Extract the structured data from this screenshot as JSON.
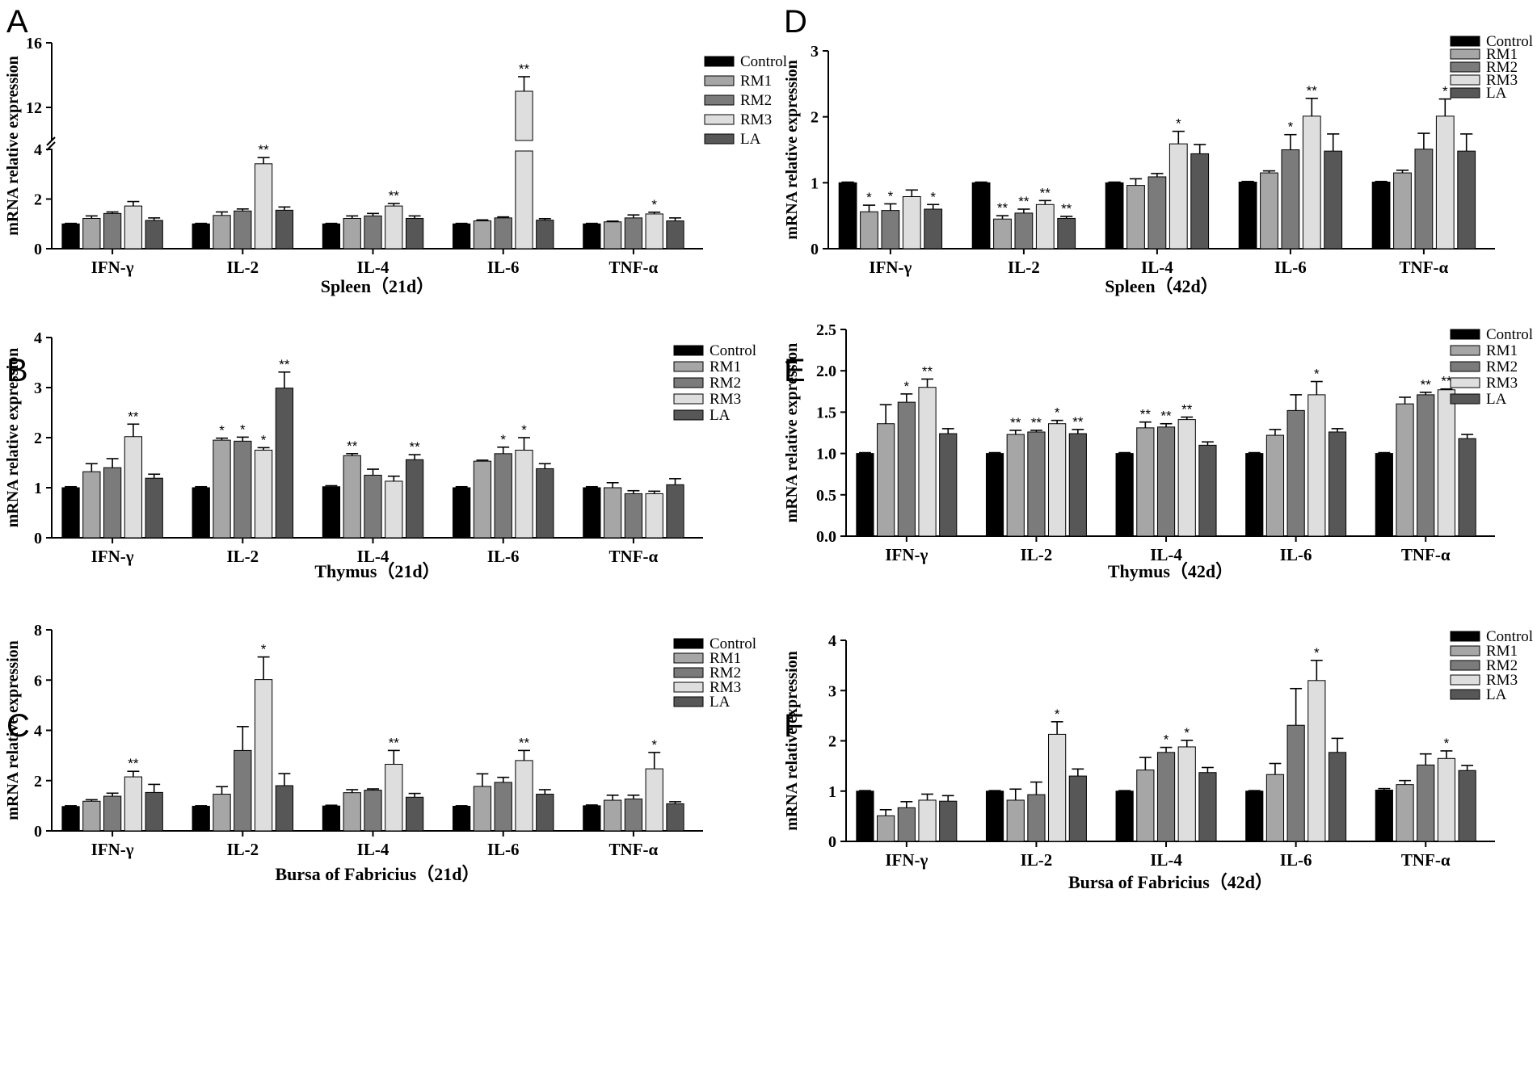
{
  "figure": {
    "series_names": [
      "Control",
      "RM1",
      "RM2",
      "RM3",
      "LA"
    ],
    "colors": {
      "Control": "#000000",
      "RM1": "#a6a6a6",
      "RM2": "#7b7b7b",
      "RM3": "#dedede",
      "LA": "#575757"
    },
    "ylabel": "mRNA relative expression"
  },
  "chart_data": [
    {
      "panel": "A",
      "type": "bar",
      "title": "",
      "xlabel": "Spleen（21d）",
      "ylabel": "mRNA relative expression",
      "categories": [
        "IFN-γ",
        "IL-2",
        "IL-4",
        "IL-6",
        "TNF-α"
      ],
      "y_broken": true,
      "ylim": [
        0,
        16
      ],
      "yticks": [
        "0",
        "2",
        "4",
        "12",
        "16"
      ],
      "series": [
        {
          "name": "Control",
          "values": [
            1.0,
            1.0,
            1.0,
            1.0,
            1.0
          ],
          "errors": [
            0.02,
            0.02,
            0.02,
            0.02,
            0.02
          ],
          "sig": [
            "",
            "",
            "",
            "",
            ""
          ]
        },
        {
          "name": "RM1",
          "values": [
            1.22,
            1.34,
            1.22,
            1.12,
            1.08
          ],
          "errors": [
            0.1,
            0.14,
            0.1,
            0.04,
            0.03
          ],
          "sig": [
            "",
            "",
            "",
            "",
            ""
          ]
        },
        {
          "name": "RM2",
          "values": [
            1.42,
            1.52,
            1.32,
            1.24,
            1.24
          ],
          "errors": [
            0.06,
            0.08,
            0.1,
            0.04,
            0.12
          ],
          "sig": [
            "",
            "",
            "",
            "",
            ""
          ]
        },
        {
          "name": "RM3",
          "values": [
            1.72,
            3.42,
            1.72,
            13.0,
            1.4
          ],
          "errors": [
            0.18,
            0.25,
            0.1,
            0.9,
            0.07
          ],
          "sig": [
            "",
            "**",
            "**",
            "**",
            "*"
          ]
        },
        {
          "name": "LA",
          "values": [
            1.14,
            1.55,
            1.22,
            1.15,
            1.12
          ],
          "errors": [
            0.1,
            0.13,
            0.1,
            0.06,
            0.12
          ],
          "sig": [
            "",
            "",
            "",
            "",
            ""
          ]
        }
      ]
    },
    {
      "panel": "B",
      "type": "bar",
      "title": "",
      "xlabel": "Thymus（21d）",
      "ylabel": "mRNA relative expression",
      "categories": [
        "IFN-γ",
        "IL-2",
        "IL-4",
        "IL-6",
        "TNF-α"
      ],
      "ylim": [
        0,
        4
      ],
      "yticks": [
        "0",
        "1",
        "2",
        "3",
        "4"
      ],
      "series": [
        {
          "name": "Control",
          "values": [
            1.0,
            1.0,
            1.02,
            1.0,
            1.0
          ],
          "errors": [
            0.02,
            0.02,
            0.02,
            0.02,
            0.02
          ],
          "sig": [
            "",
            "",
            "",
            "",
            ""
          ]
        },
        {
          "name": "RM1",
          "values": [
            1.32,
            1.95,
            1.64,
            1.53,
            1.0
          ],
          "errors": [
            0.16,
            0.04,
            0.04,
            0.02,
            0.1
          ],
          "sig": [
            "",
            "*",
            "**",
            "",
            ""
          ]
        },
        {
          "name": "RM2",
          "values": [
            1.4,
            1.93,
            1.25,
            1.68,
            0.88
          ],
          "errors": [
            0.18,
            0.08,
            0.12,
            0.13,
            0.06
          ],
          "sig": [
            "",
            "*",
            "",
            "*",
            ""
          ]
        },
        {
          "name": "RM3",
          "values": [
            2.02,
            1.75,
            1.13,
            1.75,
            0.88
          ],
          "errors": [
            0.25,
            0.05,
            0.1,
            0.25,
            0.05
          ],
          "sig": [
            "**",
            "*",
            "",
            "*",
            ""
          ]
        },
        {
          "name": "LA",
          "values": [
            1.19,
            2.99,
            1.56,
            1.38,
            1.06
          ],
          "errors": [
            0.08,
            0.32,
            0.1,
            0.1,
            0.12
          ],
          "sig": [
            "",
            "**",
            "**",
            "",
            ""
          ]
        }
      ]
    },
    {
      "panel": "C",
      "type": "bar",
      "title": "",
      "xlabel": "Bursa of Fabricius（21d）",
      "ylabel": "mRNA relative expression",
      "categories": [
        "IFN-γ",
        "IL-2",
        "IL-4",
        "IL-6",
        "TNF-α"
      ],
      "ylim": [
        0,
        8
      ],
      "yticks": [
        "0",
        "2",
        "4",
        "6",
        "8"
      ],
      "series": [
        {
          "name": "Control",
          "values": [
            0.97,
            0.98,
            0.99,
            0.98,
            1.0
          ],
          "errors": [
            0.03,
            0.02,
            0.03,
            0.02,
            0.03
          ],
          "sig": [
            "",
            "",
            "",
            "",
            ""
          ]
        },
        {
          "name": "RM1",
          "values": [
            1.18,
            1.46,
            1.52,
            1.77,
            1.22
          ],
          "errors": [
            0.06,
            0.3,
            0.12,
            0.5,
            0.2
          ],
          "sig": [
            "",
            "",
            "",
            "",
            ""
          ]
        },
        {
          "name": "RM2",
          "values": [
            1.38,
            3.2,
            1.62,
            1.93,
            1.27
          ],
          "errors": [
            0.12,
            0.95,
            0.05,
            0.2,
            0.15
          ],
          "sig": [
            "",
            "",
            "",
            "",
            ""
          ]
        },
        {
          "name": "RM3",
          "values": [
            2.15,
            6.02,
            2.65,
            2.8,
            2.47
          ],
          "errors": [
            0.22,
            0.9,
            0.55,
            0.4,
            0.65
          ],
          "sig": [
            "**",
            "*",
            "**",
            "**",
            "*"
          ]
        },
        {
          "name": "LA",
          "values": [
            1.53,
            1.8,
            1.34,
            1.46,
            1.08
          ],
          "errors": [
            0.32,
            0.48,
            0.15,
            0.18,
            0.08
          ],
          "sig": [
            "",
            "",
            "",
            "",
            ""
          ]
        }
      ]
    },
    {
      "panel": "D",
      "type": "bar",
      "title": "",
      "xlabel": "Spleen（42d）",
      "ylabel": "mRNA relative expression",
      "categories": [
        "IFN-γ",
        "IL-2",
        "IL-4",
        "IL-6",
        "TNF-α"
      ],
      "ylim": [
        0,
        3
      ],
      "yticks": [
        "0",
        "1",
        "2",
        "3"
      ],
      "series": [
        {
          "name": "Control",
          "values": [
            1.0,
            1.0,
            1.0,
            1.01,
            1.01
          ],
          "errors": [
            0.01,
            0.01,
            0.01,
            0.01,
            0.01
          ],
          "sig": [
            "",
            "",
            "",
            "",
            ""
          ]
        },
        {
          "name": "RM1",
          "values": [
            0.56,
            0.45,
            0.96,
            1.15,
            1.15
          ],
          "errors": [
            0.1,
            0.05,
            0.1,
            0.03,
            0.04
          ],
          "sig": [
            "*",
            "**",
            "",
            "",
            ""
          ]
        },
        {
          "name": "RM2",
          "values": [
            0.58,
            0.54,
            1.09,
            1.5,
            1.51
          ],
          "errors": [
            0.1,
            0.06,
            0.05,
            0.23,
            0.24
          ],
          "sig": [
            "*",
            "**",
            "",
            "*",
            ""
          ]
        },
        {
          "name": "RM3",
          "values": [
            0.79,
            0.67,
            1.59,
            2.01,
            2.01
          ],
          "errors": [
            0.1,
            0.06,
            0.19,
            0.27,
            0.26
          ],
          "sig": [
            "",
            "**",
            "*",
            "**",
            "*"
          ]
        },
        {
          "name": "LA",
          "values": [
            0.6,
            0.46,
            1.44,
            1.48,
            1.48
          ],
          "errors": [
            0.07,
            0.03,
            0.14,
            0.26,
            0.26
          ],
          "sig": [
            "*",
            "**",
            "",
            "",
            ""
          ]
        }
      ]
    },
    {
      "panel": "E",
      "type": "bar",
      "title": "",
      "xlabel": "Thymus（42d）",
      "ylabel": "mRNA relative expression",
      "categories": [
        "IFN-γ",
        "IL-2",
        "IL-4",
        "IL-6",
        "TNF-α"
      ],
      "ylim": [
        0,
        2.5
      ],
      "yticks": [
        "0.0",
        "0.5",
        "1.0",
        "1.5",
        "2.0",
        "2.5"
      ],
      "series": [
        {
          "name": "Control",
          "values": [
            1.0,
            1.0,
            1.0,
            1.0,
            1.0
          ],
          "errors": [
            0.01,
            0.01,
            0.01,
            0.01,
            0.01
          ],
          "sig": [
            "",
            "",
            "",
            "",
            ""
          ]
        },
        {
          "name": "RM1",
          "values": [
            1.36,
            1.23,
            1.31,
            1.22,
            1.6
          ],
          "errors": [
            0.23,
            0.05,
            0.07,
            0.07,
            0.08
          ],
          "sig": [
            "",
            "**",
            "**",
            "",
            ""
          ]
        },
        {
          "name": "RM2",
          "values": [
            1.62,
            1.26,
            1.32,
            1.52,
            1.71
          ],
          "errors": [
            0.1,
            0.02,
            0.04,
            0.19,
            0.03
          ],
          "sig": [
            "*",
            "**",
            "**",
            "",
            "**"
          ]
        },
        {
          "name": "RM3",
          "values": [
            1.8,
            1.36,
            1.41,
            1.71,
            1.77
          ],
          "errors": [
            0.1,
            0.04,
            0.03,
            0.16,
            0.01
          ],
          "sig": [
            "**",
            "*",
            "**",
            "*",
            "**"
          ]
        },
        {
          "name": "LA",
          "values": [
            1.24,
            1.24,
            1.1,
            1.26,
            1.18
          ],
          "errors": [
            0.06,
            0.05,
            0.04,
            0.04,
            0.05
          ],
          "sig": [
            "",
            "**",
            "",
            "",
            ""
          ]
        }
      ]
    },
    {
      "panel": "F",
      "type": "bar",
      "title": "",
      "xlabel": "Bursa of Fabricius（42d）",
      "ylabel": "mRNA relative expression",
      "categories": [
        "IFN-γ",
        "IL-2",
        "IL-4",
        "IL-6",
        "TNF-α"
      ],
      "ylim": [
        0,
        4
      ],
      "yticks": [
        "0",
        "1",
        "2",
        "3",
        "4"
      ],
      "series": [
        {
          "name": "Control",
          "values": [
            1.0,
            1.0,
            1.0,
            1.0,
            1.02
          ],
          "errors": [
            0.01,
            0.01,
            0.01,
            0.01,
            0.03
          ],
          "sig": [
            "",
            "",
            "",
            "",
            ""
          ]
        },
        {
          "name": "RM1",
          "values": [
            0.51,
            0.82,
            1.42,
            1.33,
            1.13
          ],
          "errors": [
            0.12,
            0.22,
            0.25,
            0.22,
            0.08
          ],
          "sig": [
            "",
            "",
            "",
            "",
            ""
          ]
        },
        {
          "name": "RM2",
          "values": [
            0.67,
            0.93,
            1.77,
            2.31,
            1.52
          ],
          "errors": [
            0.12,
            0.25,
            0.1,
            0.73,
            0.22
          ],
          "sig": [
            "",
            "",
            "*",
            "",
            ""
          ]
        },
        {
          "name": "RM3",
          "values": [
            0.82,
            2.13,
            1.88,
            3.2,
            1.65
          ],
          "errors": [
            0.12,
            0.25,
            0.13,
            0.4,
            0.15
          ],
          "sig": [
            "",
            "*",
            "*",
            "*",
            "*"
          ]
        },
        {
          "name": "LA",
          "values": [
            0.8,
            1.3,
            1.37,
            1.77,
            1.41
          ],
          "errors": [
            0.11,
            0.14,
            0.1,
            0.28,
            0.1
          ],
          "sig": [
            "",
            "",
            "",
            "",
            ""
          ]
        }
      ]
    }
  ]
}
